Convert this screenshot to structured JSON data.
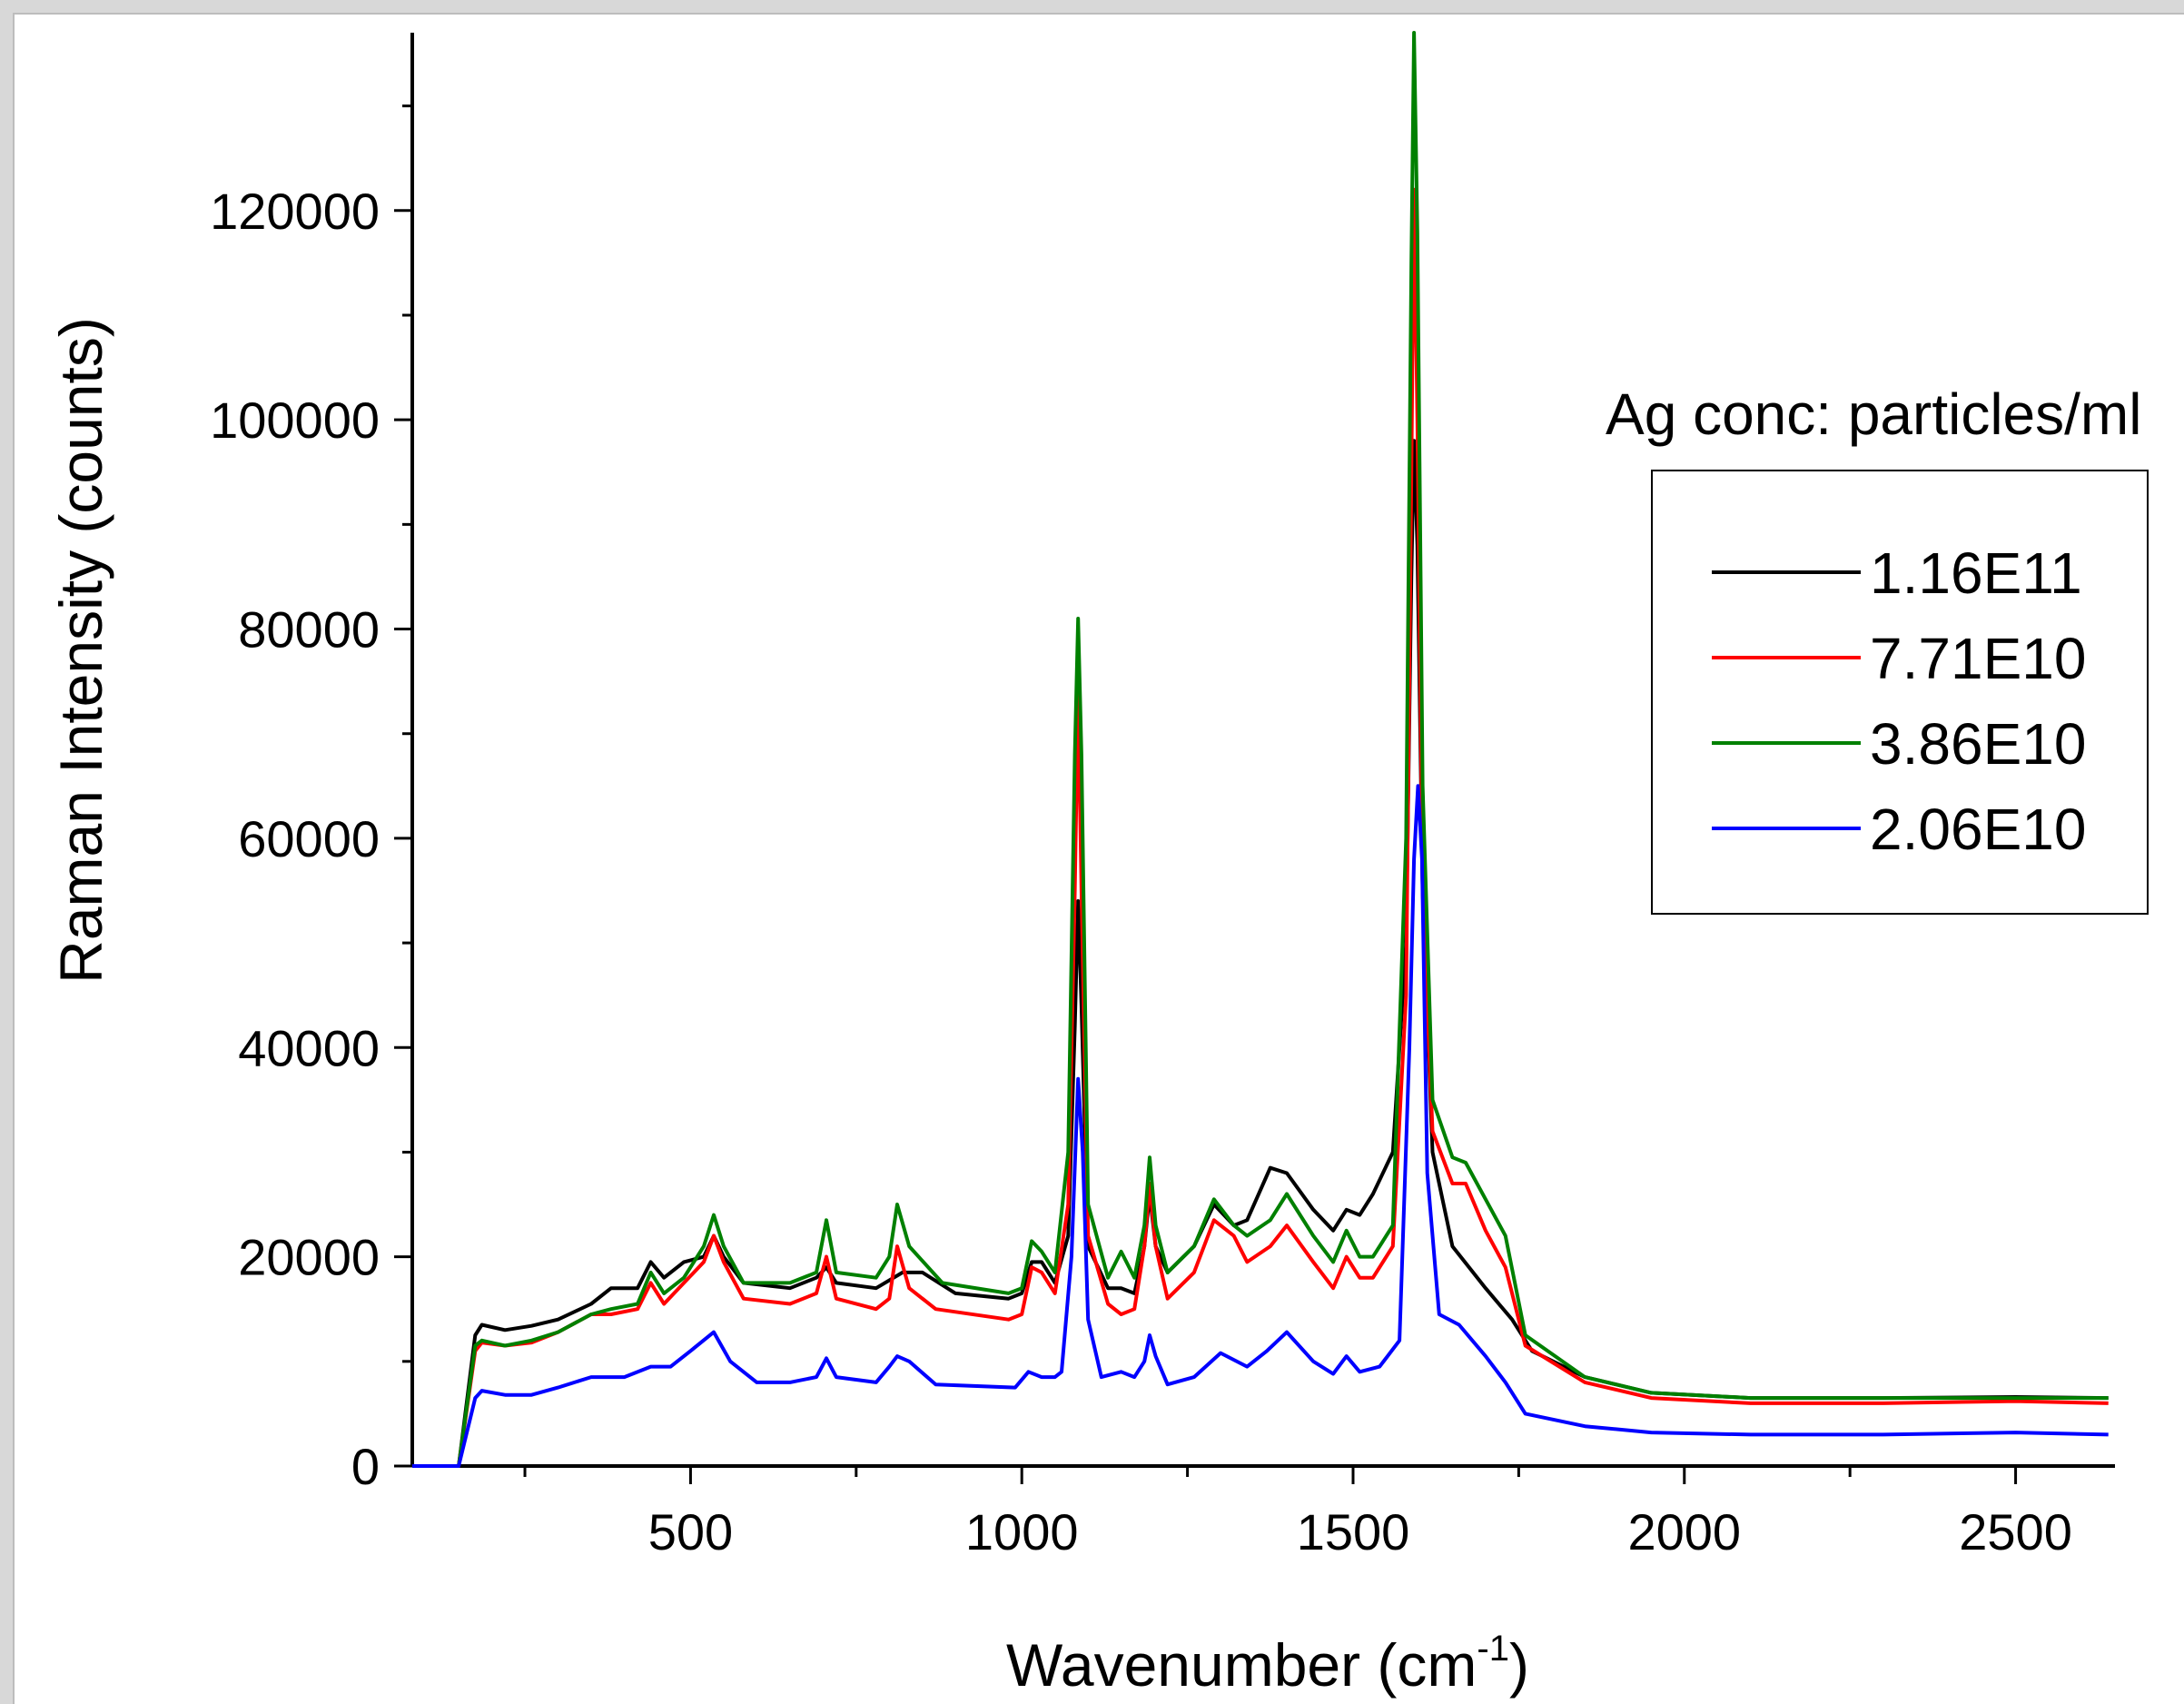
{
  "colors": {
    "page_bg": "#d8d8d8",
    "plot_bg": "#ffffff",
    "axis": "#000000"
  },
  "chart_data": {
    "type": "line",
    "title": "",
    "xlabel": "Wavenumber (cm",
    "xlabel_sup": "-1",
    "xlabel_end": ")",
    "ylabel": "Raman Intensity (counts)",
    "xlim": [
      80,
      2650
    ],
    "ylim": [
      0,
      137000
    ],
    "x_ticks": [
      500,
      1000,
      1500,
      2000,
      2500
    ],
    "x_tick_labels": [
      "500",
      "1000",
      "1500",
      "2000",
      "2500"
    ],
    "y_ticks": [
      0,
      20000,
      40000,
      60000,
      80000,
      100000,
      120000
    ],
    "y_tick_labels": [
      "0",
      "20000",
      "40000",
      "60000",
      "80000",
      "100000",
      "120000"
    ],
    "grid": false,
    "legend": {
      "title": "Ag conc: particles/ml",
      "placement": "right"
    },
    "series": [
      {
        "name": "1.16E11",
        "color": "#000000",
        "points": [
          [
            80,
            0
          ],
          [
            150,
            0
          ],
          [
            175,
            12500
          ],
          [
            185,
            13500
          ],
          [
            220,
            13000
          ],
          [
            260,
            13400
          ],
          [
            300,
            14000
          ],
          [
            350,
            15500
          ],
          [
            380,
            17000
          ],
          [
            420,
            17000
          ],
          [
            440,
            19500
          ],
          [
            460,
            18000
          ],
          [
            490,
            19500
          ],
          [
            520,
            20000
          ],
          [
            535,
            22000
          ],
          [
            550,
            20000
          ],
          [
            580,
            17500
          ],
          [
            650,
            17000
          ],
          [
            690,
            18000
          ],
          [
            705,
            19000
          ],
          [
            720,
            17500
          ],
          [
            780,
            17000
          ],
          [
            820,
            18500
          ],
          [
            850,
            18500
          ],
          [
            900,
            16500
          ],
          [
            980,
            16000
          ],
          [
            1000,
            16500
          ],
          [
            1015,
            19500
          ],
          [
            1030,
            19500
          ],
          [
            1050,
            17500
          ],
          [
            1070,
            22000
          ],
          [
            1080,
            42000
          ],
          [
            1085,
            54000
          ],
          [
            1090,
            44000
          ],
          [
            1100,
            21000
          ],
          [
            1130,
            17000
          ],
          [
            1150,
            17000
          ],
          [
            1170,
            16500
          ],
          [
            1185,
            21000
          ],
          [
            1193,
            26000
          ],
          [
            1202,
            21000
          ],
          [
            1220,
            18500
          ],
          [
            1260,
            21000
          ],
          [
            1290,
            25000
          ],
          [
            1320,
            23000
          ],
          [
            1340,
            23500
          ],
          [
            1375,
            28500
          ],
          [
            1400,
            28000
          ],
          [
            1440,
            24500
          ],
          [
            1470,
            22500
          ],
          [
            1490,
            24500
          ],
          [
            1510,
            24000
          ],
          [
            1530,
            26000
          ],
          [
            1560,
            30000
          ],
          [
            1580,
            50000
          ],
          [
            1588,
            85000
          ],
          [
            1592,
            98000
          ],
          [
            1597,
            88000
          ],
          [
            1605,
            55000
          ],
          [
            1620,
            30000
          ],
          [
            1650,
            21000
          ],
          [
            1700,
            17000
          ],
          [
            1740,
            14000
          ],
          [
            1770,
            11000
          ],
          [
            1850,
            8500
          ],
          [
            1950,
            7000
          ],
          [
            2100,
            6500
          ],
          [
            2300,
            6500
          ],
          [
            2500,
            6600
          ],
          [
            2640,
            6500
          ]
        ]
      },
      {
        "name": "7.71E10",
        "color": "#ff0000",
        "points": [
          [
            80,
            0
          ],
          [
            150,
            0
          ],
          [
            175,
            11000
          ],
          [
            185,
            11800
          ],
          [
            220,
            11500
          ],
          [
            260,
            11800
          ],
          [
            300,
            12800
          ],
          [
            350,
            14500
          ],
          [
            380,
            14500
          ],
          [
            420,
            15000
          ],
          [
            440,
            17500
          ],
          [
            460,
            15500
          ],
          [
            490,
            17500
          ],
          [
            520,
            19500
          ],
          [
            535,
            22000
          ],
          [
            550,
            19500
          ],
          [
            580,
            16000
          ],
          [
            650,
            15500
          ],
          [
            690,
            16500
          ],
          [
            705,
            20000
          ],
          [
            720,
            16000
          ],
          [
            780,
            15000
          ],
          [
            800,
            16000
          ],
          [
            812,
            21000
          ],
          [
            830,
            17000
          ],
          [
            870,
            15000
          ],
          [
            980,
            14000
          ],
          [
            1000,
            14500
          ],
          [
            1015,
            19000
          ],
          [
            1030,
            18500
          ],
          [
            1050,
            16500
          ],
          [
            1070,
            25000
          ],
          [
            1080,
            55000
          ],
          [
            1085,
            74000
          ],
          [
            1090,
            55000
          ],
          [
            1100,
            22000
          ],
          [
            1130,
            15500
          ],
          [
            1150,
            14500
          ],
          [
            1170,
            15000
          ],
          [
            1185,
            21000
          ],
          [
            1193,
            27000
          ],
          [
            1202,
            21000
          ],
          [
            1220,
            16000
          ],
          [
            1260,
            18500
          ],
          [
            1290,
            23500
          ],
          [
            1320,
            22000
          ],
          [
            1340,
            19500
          ],
          [
            1375,
            21000
          ],
          [
            1400,
            23000
          ],
          [
            1440,
            19500
          ],
          [
            1470,
            17000
          ],
          [
            1490,
            20000
          ],
          [
            1510,
            18000
          ],
          [
            1530,
            18000
          ],
          [
            1560,
            21000
          ],
          [
            1580,
            45000
          ],
          [
            1588,
            95000
          ],
          [
            1592,
            122000
          ],
          [
            1597,
            100000
          ],
          [
            1605,
            55000
          ],
          [
            1620,
            32000
          ],
          [
            1650,
            27000
          ],
          [
            1670,
            27000
          ],
          [
            1700,
            22500
          ],
          [
            1730,
            19000
          ],
          [
            1760,
            11500
          ],
          [
            1850,
            8000
          ],
          [
            1950,
            6500
          ],
          [
            2100,
            6000
          ],
          [
            2300,
            6000
          ],
          [
            2500,
            6200
          ],
          [
            2640,
            6000
          ]
        ]
      },
      {
        "name": "3.86E10",
        "color": "#008000",
        "points": [
          [
            80,
            0
          ],
          [
            150,
            0
          ],
          [
            175,
            11500
          ],
          [
            185,
            12000
          ],
          [
            220,
            11500
          ],
          [
            260,
            12000
          ],
          [
            300,
            12800
          ],
          [
            350,
            14500
          ],
          [
            380,
            15000
          ],
          [
            420,
            15500
          ],
          [
            440,
            18500
          ],
          [
            460,
            16500
          ],
          [
            490,
            18000
          ],
          [
            520,
            21000
          ],
          [
            535,
            24000
          ],
          [
            550,
            21000
          ],
          [
            580,
            17500
          ],
          [
            650,
            17500
          ],
          [
            690,
            18500
          ],
          [
            705,
            23500
          ],
          [
            720,
            18500
          ],
          [
            780,
            18000
          ],
          [
            800,
            20000
          ],
          [
            812,
            25000
          ],
          [
            830,
            21000
          ],
          [
            880,
            17500
          ],
          [
            980,
            16500
          ],
          [
            1000,
            17000
          ],
          [
            1015,
            21500
          ],
          [
            1030,
            20500
          ],
          [
            1050,
            18500
          ],
          [
            1070,
            30000
          ],
          [
            1080,
            68000
          ],
          [
            1085,
            81000
          ],
          [
            1090,
            68000
          ],
          [
            1100,
            25000
          ],
          [
            1130,
            18000
          ],
          [
            1150,
            20500
          ],
          [
            1170,
            18000
          ],
          [
            1185,
            23000
          ],
          [
            1193,
            29500
          ],
          [
            1202,
            23000
          ],
          [
            1220,
            18500
          ],
          [
            1260,
            21000
          ],
          [
            1290,
            25500
          ],
          [
            1320,
            23000
          ],
          [
            1340,
            22000
          ],
          [
            1375,
            23500
          ],
          [
            1400,
            26000
          ],
          [
            1440,
            22000
          ],
          [
            1470,
            19500
          ],
          [
            1490,
            22500
          ],
          [
            1510,
            20000
          ],
          [
            1530,
            20000
          ],
          [
            1560,
            23000
          ],
          [
            1580,
            60000
          ],
          [
            1588,
            115000
          ],
          [
            1592,
            137000
          ],
          [
            1597,
            118000
          ],
          [
            1605,
            65000
          ],
          [
            1620,
            35000
          ],
          [
            1650,
            29500
          ],
          [
            1670,
            29000
          ],
          [
            1700,
            25500
          ],
          [
            1730,
            22000
          ],
          [
            1760,
            12500
          ],
          [
            1850,
            8500
          ],
          [
            1950,
            7000
          ],
          [
            2100,
            6500
          ],
          [
            2300,
            6500
          ],
          [
            2500,
            6500
          ],
          [
            2640,
            6500
          ]
        ]
      },
      {
        "name": "2.06E10",
        "color": "#0000ff",
        "points": [
          [
            80,
            0
          ],
          [
            150,
            0
          ],
          [
            175,
            6500
          ],
          [
            185,
            7200
          ],
          [
            220,
            6800
          ],
          [
            260,
            6800
          ],
          [
            300,
            7500
          ],
          [
            350,
            8500
          ],
          [
            400,
            8500
          ],
          [
            440,
            9500
          ],
          [
            470,
            9500
          ],
          [
            500,
            11000
          ],
          [
            535,
            12800
          ],
          [
            560,
            10000
          ],
          [
            600,
            8000
          ],
          [
            650,
            8000
          ],
          [
            690,
            8500
          ],
          [
            705,
            10300
          ],
          [
            720,
            8500
          ],
          [
            780,
            8000
          ],
          [
            800,
            9500
          ],
          [
            812,
            10500
          ],
          [
            830,
            10000
          ],
          [
            870,
            7800
          ],
          [
            990,
            7500
          ],
          [
            1010,
            9000
          ],
          [
            1030,
            8500
          ],
          [
            1050,
            8500
          ],
          [
            1060,
            9000
          ],
          [
            1075,
            20000
          ],
          [
            1085,
            37000
          ],
          [
            1092,
            30000
          ],
          [
            1100,
            14000
          ],
          [
            1120,
            8500
          ],
          [
            1150,
            9000
          ],
          [
            1170,
            8500
          ],
          [
            1185,
            10000
          ],
          [
            1193,
            12500
          ],
          [
            1202,
            10500
          ],
          [
            1220,
            7800
          ],
          [
            1260,
            8500
          ],
          [
            1300,
            10800
          ],
          [
            1340,
            9500
          ],
          [
            1370,
            11000
          ],
          [
            1400,
            12800
          ],
          [
            1440,
            10000
          ],
          [
            1470,
            8800
          ],
          [
            1490,
            10500
          ],
          [
            1510,
            9000
          ],
          [
            1540,
            9500
          ],
          [
            1570,
            12000
          ],
          [
            1585,
            40000
          ],
          [
            1592,
            58000
          ],
          [
            1598,
            65000
          ],
          [
            1604,
            58000
          ],
          [
            1612,
            28000
          ],
          [
            1630,
            14500
          ],
          [
            1660,
            13500
          ],
          [
            1700,
            10500
          ],
          [
            1730,
            8000
          ],
          [
            1760,
            5000
          ],
          [
            1850,
            3800
          ],
          [
            1950,
            3200
          ],
          [
            2100,
            3000
          ],
          [
            2300,
            3000
          ],
          [
            2500,
            3200
          ],
          [
            2640,
            3000
          ]
        ]
      }
    ]
  }
}
